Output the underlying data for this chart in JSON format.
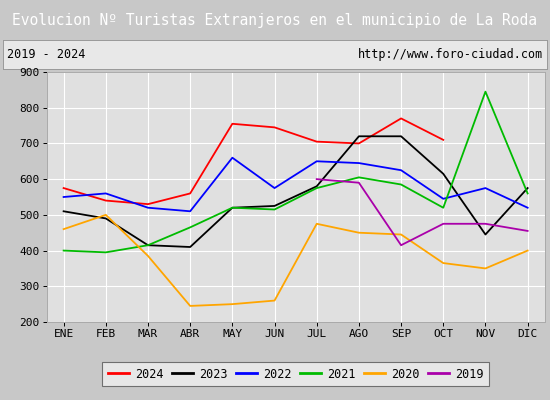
{
  "title": "Evolucion Nº Turistas Extranjeros en el municipio de La Roda",
  "subtitle_left": "2019 - 2024",
  "subtitle_right": "http://www.foro-ciudad.com",
  "months": [
    "ENE",
    "FEB",
    "MAR",
    "ABR",
    "MAY",
    "JUN",
    "JUL",
    "AGO",
    "SEP",
    "OCT",
    "NOV",
    "DIC"
  ],
  "ylim": [
    200,
    900
  ],
  "yticks": [
    200,
    300,
    400,
    500,
    600,
    700,
    800,
    900
  ],
  "series": {
    "2024": {
      "color": "#ff0000",
      "values": [
        575,
        540,
        530,
        560,
        755,
        745,
        705,
        700,
        770,
        710,
        null,
        null
      ]
    },
    "2023": {
      "color": "#000000",
      "values": [
        510,
        490,
        415,
        410,
        520,
        525,
        580,
        720,
        720,
        615,
        445,
        575
      ]
    },
    "2022": {
      "color": "#0000ff",
      "values": [
        550,
        560,
        520,
        510,
        660,
        575,
        650,
        645,
        625,
        545,
        575,
        520
      ]
    },
    "2021": {
      "color": "#00bb00",
      "values": [
        400,
        395,
        415,
        465,
        520,
        515,
        575,
        605,
        585,
        520,
        845,
        560
      ]
    },
    "2020": {
      "color": "#ffa500",
      "values": [
        460,
        500,
        385,
        245,
        250,
        260,
        475,
        450,
        445,
        365,
        350,
        400
      ]
    },
    "2019": {
      "color": "#aa00aa",
      "values": [
        null,
        null,
        null,
        null,
        null,
        null,
        600,
        590,
        415,
        475,
        475,
        455
      ]
    }
  },
  "title_bg_color": "#4472c4",
  "title_color": "#ffffff",
  "plot_bg_color": "#e0e0e0",
  "outer_bg_color": "#c8c8c8",
  "subtitle_bg_color": "#e8e8e8",
  "border_color": "#000000",
  "grid_color": "#ffffff",
  "title_fontsize": 10.5,
  "subtitle_fontsize": 8.5,
  "tick_fontsize": 8,
  "legend_fontsize": 8.5
}
